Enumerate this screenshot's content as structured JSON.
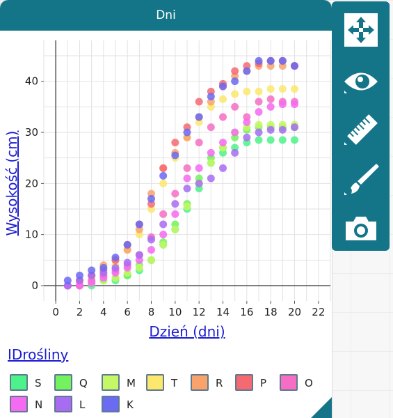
{
  "window": {
    "title": "Dni"
  },
  "toolbar": {
    "tools": [
      {
        "name": "move-tool",
        "icon": "move-arrows-icon"
      },
      {
        "name": "hide-tool",
        "icon": "eye-icon"
      },
      {
        "name": "measure-tool",
        "icon": "ruler-icon"
      },
      {
        "name": "draw-tool",
        "icon": "paintbrush-icon"
      },
      {
        "name": "snapshot-tool",
        "icon": "camera-icon"
      }
    ]
  },
  "legend": {
    "title": "IDrośliny",
    "items": [
      {
        "label": "S",
        "color": "#4ef28a"
      },
      {
        "label": "Q",
        "color": "#72f25e"
      },
      {
        "label": "M",
        "color": "#c6f766"
      },
      {
        "label": "T",
        "color": "#fbe86c"
      },
      {
        "label": "R",
        "color": "#f9a36b"
      },
      {
        "label": "P",
        "color": "#f56a72"
      },
      {
        "label": "O",
        "color": "#f56ec4"
      },
      {
        "label": "N",
        "color": "#f46af0"
      },
      {
        "label": "L",
        "color": "#a86cf2"
      },
      {
        "label": "K",
        "color": "#6a6af2"
      }
    ]
  },
  "chart_data": {
    "type": "scatter",
    "title": "",
    "xlabel": "Dzień (dni)",
    "ylabel": "Wysokość (cm)",
    "xlim": [
      -1,
      23
    ],
    "ylim": [
      -3,
      48
    ],
    "xticks": [
      0,
      2,
      4,
      6,
      8,
      10,
      12,
      14,
      16,
      18,
      20,
      22
    ],
    "yticks": [
      0,
      10,
      20,
      30,
      40
    ],
    "grid": true,
    "x": [
      1,
      2,
      3,
      4,
      5,
      6,
      7,
      8,
      9,
      10,
      11,
      12,
      13,
      14,
      15,
      16,
      17,
      18,
      19,
      20
    ],
    "series": [
      {
        "name": "S",
        "values": [
          0,
          0,
          0,
          1,
          1,
          2,
          3,
          5,
          8,
          11,
          15,
          19,
          24,
          26,
          27,
          28,
          28.5,
          28.5,
          28.5,
          28.5
        ]
      },
      {
        "name": "Q",
        "values": [
          0,
          0,
          1,
          1,
          1.5,
          2,
          4,
          5,
          8.5,
          12,
          16,
          21,
          25,
          27,
          29,
          30.5,
          31,
          31,
          31,
          31
        ]
      },
      {
        "name": "M",
        "values": [
          0,
          0,
          0.5,
          1,
          1.5,
          2.5,
          3.5,
          5,
          8,
          11,
          15.5,
          20,
          24,
          27,
          30,
          31,
          31.5,
          31.5,
          31.5,
          31.5
        ]
      },
      {
        "name": "T",
        "values": [
          0,
          0.5,
          1,
          2,
          4,
          7,
          10,
          15,
          20,
          25,
          29,
          32,
          35,
          36.5,
          37.5,
          38,
          38,
          38.5,
          38.5,
          38.5
        ]
      },
      {
        "name": "R",
        "values": [
          0,
          1,
          2,
          4,
          5,
          7,
          11,
          18,
          23,
          26,
          29,
          33,
          36,
          39,
          41,
          42,
          43,
          43,
          43,
          43
        ]
      },
      {
        "name": "P",
        "values": [
          0,
          1,
          2,
          3,
          5,
          8,
          12,
          16,
          23,
          28,
          31,
          36,
          38,
          39.5,
          42,
          43,
          43.5,
          44,
          44,
          43
        ]
      },
      {
        "name": "O",
        "values": [
          0,
          0,
          1,
          2,
          3,
          4,
          6,
          9.5,
          14,
          18,
          23,
          28,
          31,
          33,
          35,
          33,
          36,
          36.5,
          36,
          36
        ]
      },
      {
        "name": "N",
        "values": [
          0,
          0,
          0.5,
          1.5,
          2.5,
          3.5,
          5,
          7,
          10,
          14,
          21,
          23,
          26,
          28,
          30,
          32,
          34,
          35,
          35.5,
          35.5
        ]
      },
      {
        "name": "L",
        "values": [
          0,
          1,
          2,
          2.5,
          3.5,
          4.5,
          6,
          9,
          12,
          16,
          19,
          20,
          21,
          23,
          26,
          29,
          30,
          30.5,
          30.5,
          31
        ]
      },
      {
        "name": "K",
        "values": [
          1,
          2,
          3,
          3.5,
          5.5,
          8,
          12,
          17,
          21.5,
          25.5,
          30,
          33,
          37,
          39,
          40,
          42,
          44,
          44,
          44,
          43
        ]
      }
    ]
  }
}
